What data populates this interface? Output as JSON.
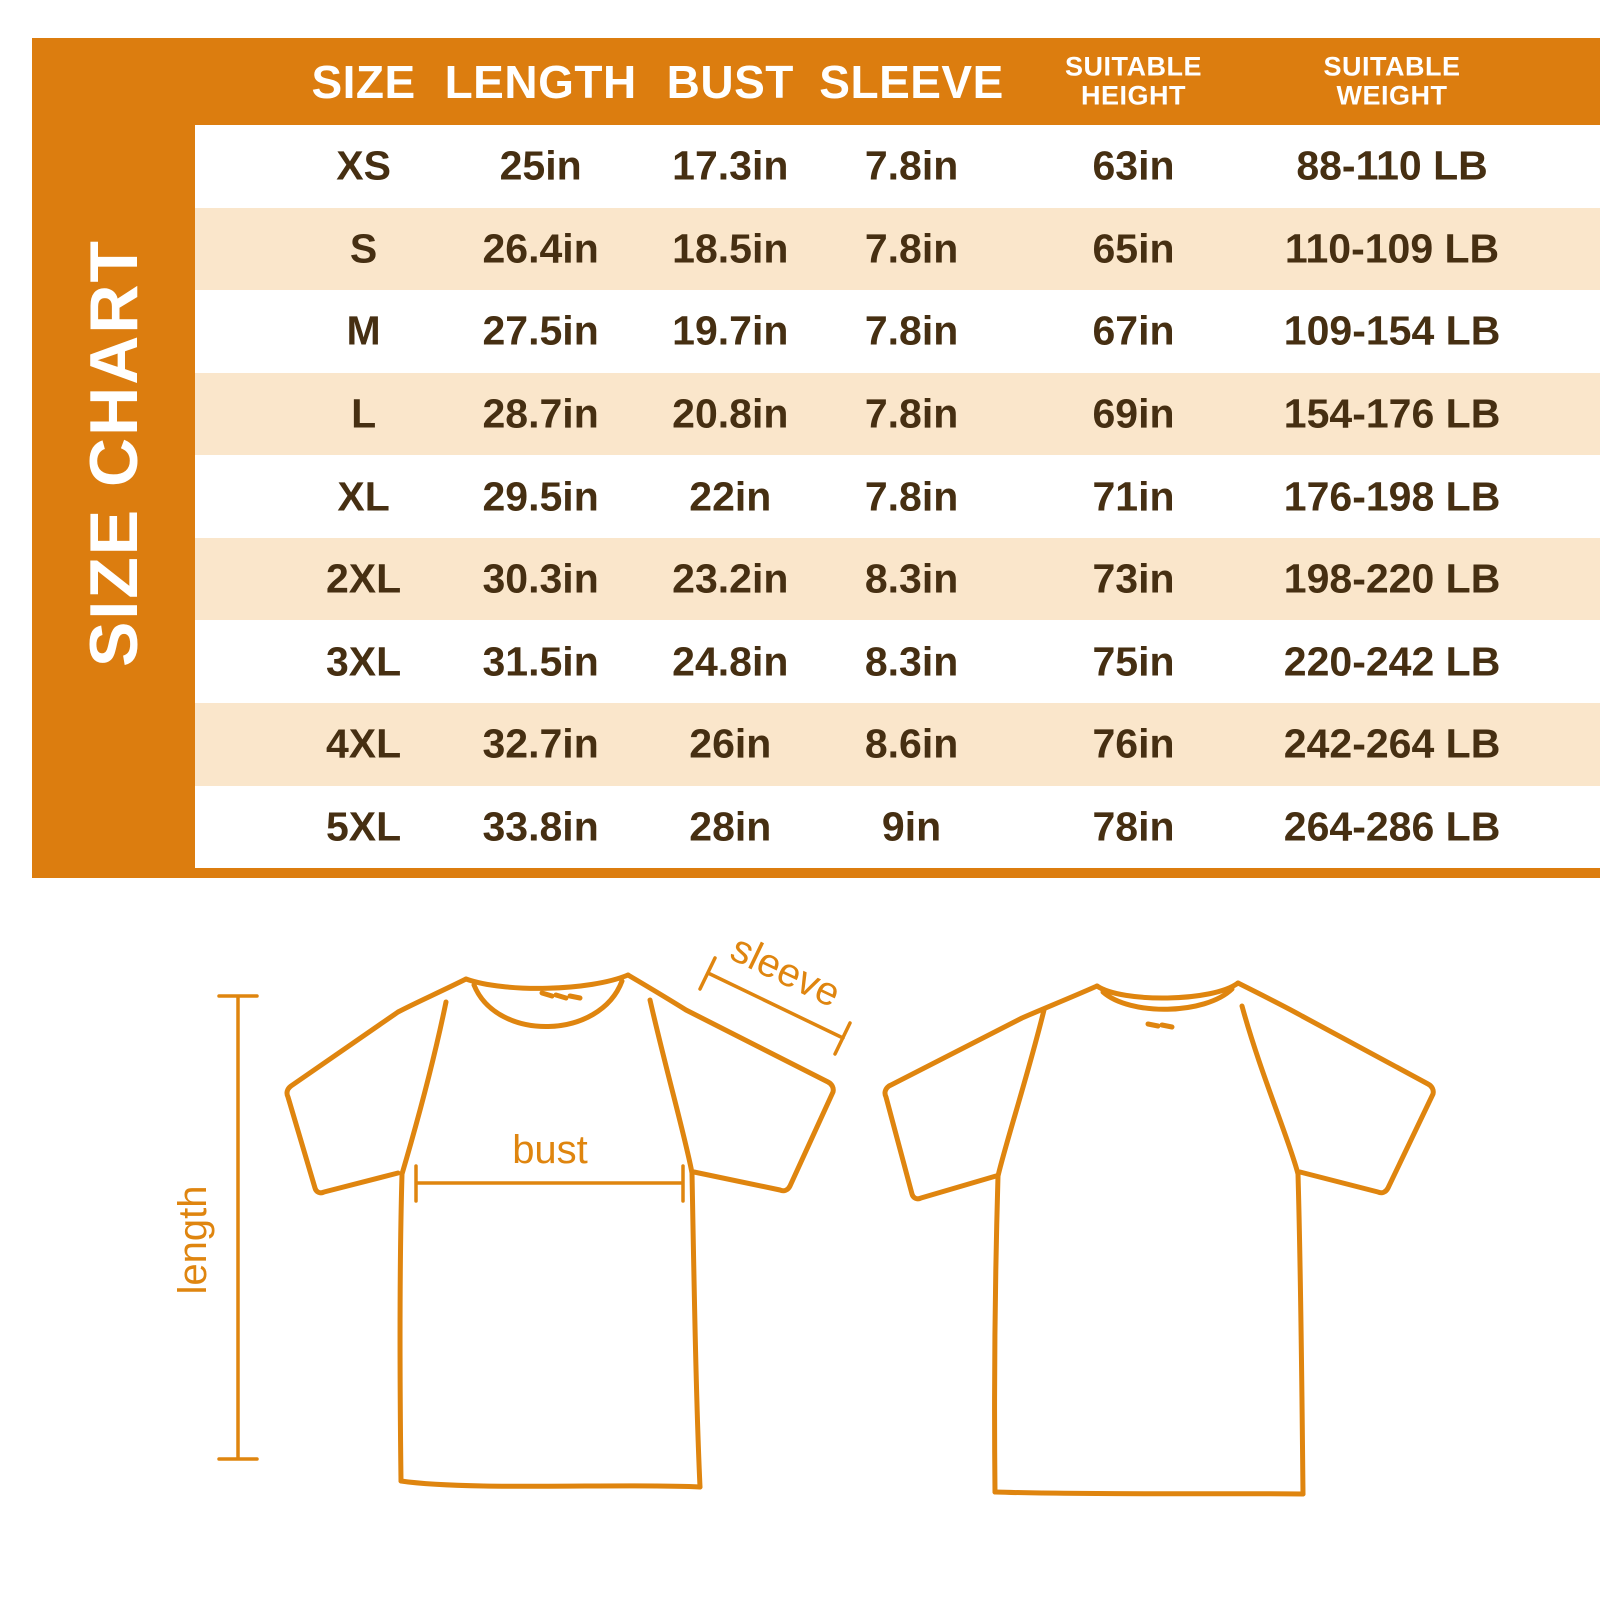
{
  "colors": {
    "frame_orange": "#DC7D0F",
    "row_cream": "#FAE6CB",
    "row_white": "#FFFFFF",
    "text_brown": "#462F12",
    "header_text": "#FFFFFF",
    "diagram_orange": "#DF850F"
  },
  "sidebar": {
    "title": "SIZE CHART"
  },
  "table": {
    "columns": [
      {
        "line1": "SIZE"
      },
      {
        "line1": "LENGTH"
      },
      {
        "line1": "BUST"
      },
      {
        "line1": "SLEEVE"
      },
      {
        "line1": "SUITABLE",
        "line2": "HEIGHT"
      },
      {
        "line1": "SUITABLE",
        "line2": "WEIGHT"
      }
    ],
    "rows": [
      {
        "size": "XS",
        "length": "25in",
        "bust": "17.3in",
        "sleeve": "7.8in",
        "height": "63in",
        "weight": "88-110 LB"
      },
      {
        "size": "S",
        "length": "26.4in",
        "bust": "18.5in",
        "sleeve": "7.8in",
        "height": "65in",
        "weight": "110-109 LB"
      },
      {
        "size": "M",
        "length": "27.5in",
        "bust": "19.7in",
        "sleeve": "7.8in",
        "height": "67in",
        "weight": "109-154 LB"
      },
      {
        "size": "L",
        "length": "28.7in",
        "bust": "20.8in",
        "sleeve": "7.8in",
        "height": "69in",
        "weight": "154-176 LB"
      },
      {
        "size": "XL",
        "length": "29.5in",
        "bust": "22in",
        "sleeve": "7.8in",
        "height": "71in",
        "weight": "176-198 LB"
      },
      {
        "size": "2XL",
        "length": "30.3in",
        "bust": "23.2in",
        "sleeve": "8.3in",
        "height": "73in",
        "weight": "198-220 LB"
      },
      {
        "size": "3XL",
        "length": "31.5in",
        "bust": "24.8in",
        "sleeve": "8.3in",
        "height": "75in",
        "weight": "220-242 LB"
      },
      {
        "size": "4XL",
        "length": "32.7in",
        "bust": "26in",
        "sleeve": "8.6in",
        "height": "76in",
        "weight": "242-264 LB"
      },
      {
        "size": "5XL",
        "length": "33.8in",
        "bust": "28in",
        "sleeve": "9in",
        "height": "78in",
        "weight": "264-286 LB"
      }
    ]
  },
  "diagram": {
    "labels": {
      "length": "length",
      "bust": "bust",
      "sleeve": "sleeve"
    }
  }
}
